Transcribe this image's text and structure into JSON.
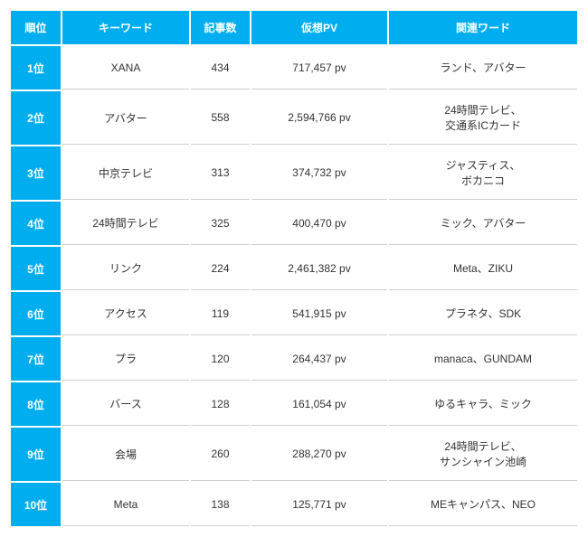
{
  "headers": {
    "rank": "順位",
    "keyword": "キーワード",
    "articles": "記事数",
    "pv": "仮想PV",
    "related": "関連ワード"
  },
  "rows": [
    {
      "rank": "1位",
      "keyword": "XANA",
      "articles": "434",
      "pv": "717,457 pv",
      "related": "ランド、アバター"
    },
    {
      "rank": "2位",
      "keyword": "アバター",
      "articles": "558",
      "pv": "2,594,766 pv",
      "related": "24時間テレビ、\n交通系ICカード"
    },
    {
      "rank": "3位",
      "keyword": "中京テレビ",
      "articles": "313",
      "pv": "374,732 pv",
      "related": "ジャスティス、\nボカニコ"
    },
    {
      "rank": "4位",
      "keyword": "24時間テレビ",
      "articles": "325",
      "pv": "400,470 pv",
      "related": "ミック、アバター"
    },
    {
      "rank": "5位",
      "keyword": "リンク",
      "articles": "224",
      "pv": "2,461,382 pv",
      "related": "Meta、ZIKU"
    },
    {
      "rank": "6位",
      "keyword": "アクセス",
      "articles": "119",
      "pv": "541,915 pv",
      "related": "プラネタ、SDK"
    },
    {
      "rank": "7位",
      "keyword": "プラ",
      "articles": "120",
      "pv": "264,437 pv",
      "related": "manaca、GUNDAM"
    },
    {
      "rank": "8位",
      "keyword": "バース",
      "articles": "128",
      "pv": "161,054 pv",
      "related": "ゆるキャラ、ミック"
    },
    {
      "rank": "9位",
      "keyword": "会場",
      "articles": "260",
      "pv": "288,270 pv",
      "related": "24時間テレビ、\nサンシャイン池崎"
    },
    {
      "rank": "10位",
      "keyword": "Meta",
      "articles": "138",
      "pv": "125,771 pv",
      "related": "MEキャンパス、NEO"
    }
  ],
  "colors": {
    "header_bg": "#00aeef",
    "header_text": "#ffffff",
    "border": "#d0d0d0",
    "text": "#333333"
  }
}
